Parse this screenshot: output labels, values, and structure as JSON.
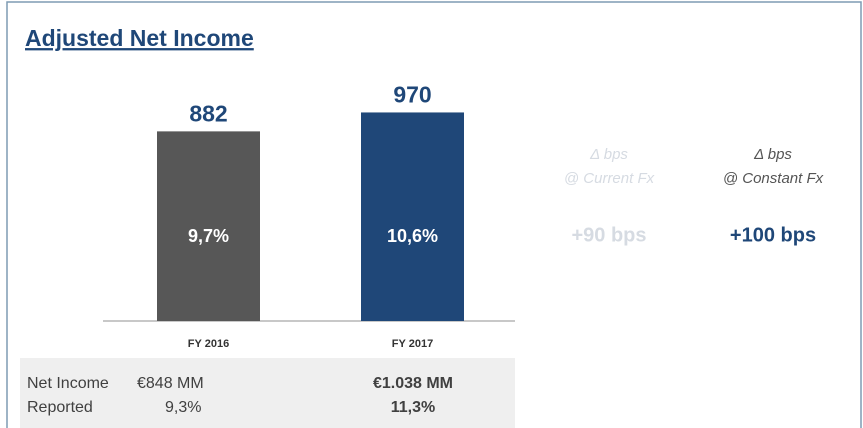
{
  "chart_data": {
    "type": "bar",
    "title": "Adjusted Net Income",
    "categories": [
      "FY 2016",
      "FY 2017"
    ],
    "values": [
      882,
      970
    ],
    "colors": [
      "#575757",
      "#1f4778"
    ],
    "inner_labels": [
      "9,7%",
      "10,6%"
    ],
    "ylim": [
      0,
      1100
    ]
  },
  "comparison": [
    {
      "header": [
        "Δ bps",
        "@ Current Fx"
      ],
      "value": "+90 bps",
      "color": "#d6dbe2",
      "header_color": "#d6dbe2"
    },
    {
      "header": [
        "Δ bps",
        "@ Constant Fx"
      ],
      "value": "+100 bps",
      "color": "#1f4778",
      "header_color": "#555555"
    }
  ],
  "reported": {
    "label": [
      "Net Income",
      "Reported"
    ],
    "fy2016": [
      "€848 MM",
      "9,3%"
    ],
    "fy2017": [
      "€1.038 MM",
      "11,3%"
    ]
  }
}
